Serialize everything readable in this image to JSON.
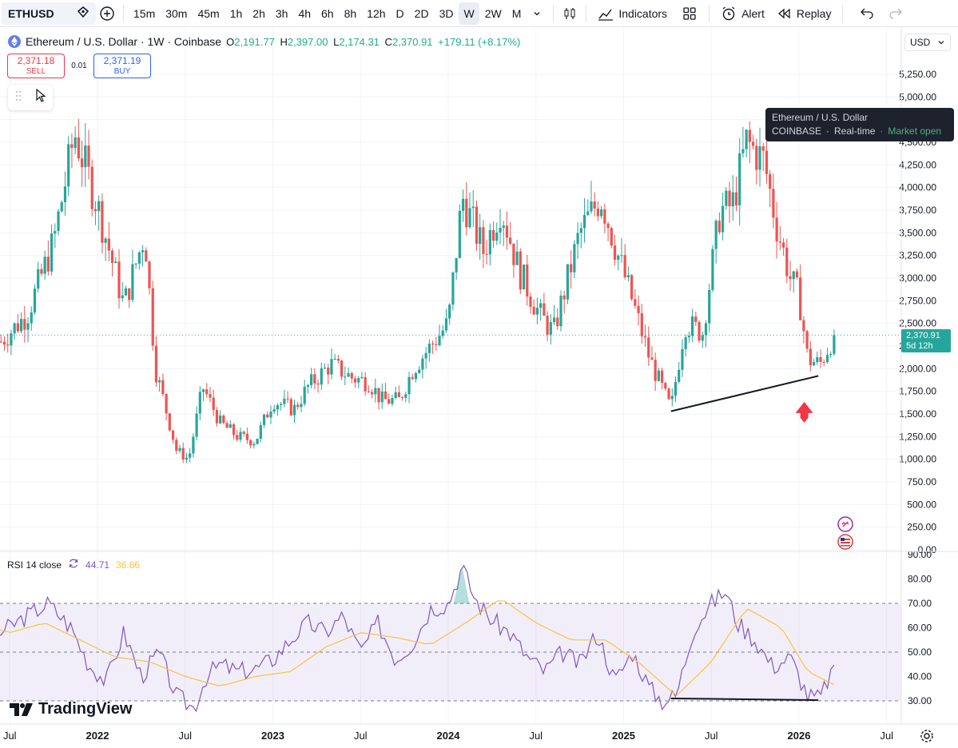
{
  "toolbar": {
    "symbol": "ETHUSD",
    "timeframes": [
      "15m",
      "30m",
      "45m",
      "1h",
      "2h",
      "3h",
      "4h",
      "6h",
      "8h",
      "12h",
      "D",
      "2D",
      "3D",
      "W",
      "2W",
      "M"
    ],
    "active_timeframe": "W",
    "indicators_label": "Indicators",
    "alert_label": "Alert",
    "replay_label": "Replay"
  },
  "legend": {
    "title": "Ethereum / U.S. Dollar · 1W · Coinbase",
    "o_label": "O",
    "o": "2,191.77",
    "h_label": "H",
    "h": "2,397.00",
    "l_label": "L",
    "l": "2,174.31",
    "c_label": "C",
    "c": "2,370.91",
    "change": "+179.11 (+8.17%)"
  },
  "trade": {
    "sell_price": "2,371.18",
    "sell_label": "SELL",
    "spread": "0.01",
    "buy_price": "2,371.19",
    "buy_label": "BUY"
  },
  "currency": "USD",
  "tooltip": {
    "line1": "Ethereum / U.S. Dollar",
    "exchange": "COINBASE",
    "rt": "Real-time",
    "status": "Market open"
  },
  "price_tag": {
    "price": "2,370.91",
    "countdown": "5d 12h"
  },
  "rsi_legend": {
    "label": "RSI 14 close",
    "rsi": "44.71",
    "ma": "36.66"
  },
  "branding": "TradingView",
  "colors": {
    "up": "#26a69a",
    "down": "#ef5350",
    "rsi": "#7e57c2",
    "rsi_ma": "#f7c342"
  },
  "chart_data": [
    {
      "type": "candlestick",
      "title": "Ethereum / U.S. Dollar · 1W · Coinbase",
      "ylim": [
        0,
        5400
      ],
      "y_ticks": [
        0,
        250,
        500,
        750,
        1000,
        1250,
        1500,
        1750,
        2000,
        2250,
        2500,
        2750,
        3000,
        3250,
        3500,
        3750,
        4000,
        4250,
        4500,
        4750,
        5000,
        5250
      ],
      "x_tick_labels": [
        "Jul",
        "2022",
        "Jul",
        "2023",
        "Jul",
        "2024",
        "Jul",
        "2025",
        "Jul",
        "2026",
        "Jul"
      ],
      "x_ticks": [
        2021.5,
        2022.0,
        2022.5,
        2023.0,
        2023.5,
        2024.0,
        2024.5,
        2025.0,
        2025.5,
        2026.0,
        2026.5
      ],
      "last_close": 2370.91,
      "series": [
        {
          "x": [
            2021.45,
            2021.6,
            2021.75,
            2021.87,
            2022.0,
            2022.15,
            2022.27,
            2022.33,
            2022.45,
            2022.52,
            2022.6,
            2022.7,
            2022.8,
            2022.9,
            2023.0,
            2023.12,
            2023.2,
            2023.33,
            2023.45,
            2023.55,
            2023.62,
            2023.72,
            2023.8,
            2023.92,
            2024.0,
            2024.08,
            2024.2,
            2024.3,
            2024.4,
            2024.52,
            2024.6,
            2024.75,
            2024.87,
            2024.96,
            2025.05,
            2025.15,
            2025.27,
            2025.35,
            2025.45,
            2025.55,
            2025.62,
            2025.7,
            2025.8,
            2025.87,
            2025.95,
            2026.0,
            2026.05,
            2026.12,
            2026.2
          ],
          "close": [
            2300,
            2600,
            3400,
            4600,
            3800,
            2700,
            3500,
            2000,
            1100,
            1000,
            1800,
            1400,
            1250,
            1200,
            1650,
            1550,
            1800,
            2050,
            1900,
            1850,
            1650,
            1650,
            2000,
            2300,
            2500,
            3900,
            3300,
            3800,
            3100,
            2600,
            2400,
            3500,
            3900,
            3300,
            2750,
            2100,
            1550,
            2500,
            2400,
            3750,
            3800,
            4500,
            4300,
            3600,
            3000,
            2800,
            2100,
            2050,
            2370.91
          ]
        }
      ],
      "annotations": [
        {
          "type": "trendline",
          "from": [
            2025.27,
            1530
          ],
          "to": [
            2026.11,
            1920
          ]
        },
        {
          "type": "arrow-up",
          "at": [
            2026.03,
            1510
          ]
        }
      ]
    },
    {
      "type": "line",
      "title": "RSI 14 close",
      "ylim": [
        25,
        92
      ],
      "y_ticks": [
        30,
        40,
        50,
        60,
        70,
        80,
        90
      ],
      "bands": [
        30,
        50,
        70
      ],
      "series": [
        {
          "name": "RSI",
          "x": [
            2021.3,
            2021.45,
            2021.6,
            2021.72,
            2021.85,
            2021.95,
            2022.05,
            2022.15,
            2022.25,
            2022.35,
            2022.45,
            2022.55,
            2022.62,
            2022.7,
            2022.8,
            2022.9,
            2023.0,
            2023.1,
            2023.2,
            2023.3,
            2023.4,
            2023.5,
            2023.6,
            2023.7,
            2023.8,
            2023.9,
            2024.0,
            2024.08,
            2024.15,
            2024.25,
            2024.35,
            2024.45,
            2024.55,
            2024.65,
            2024.75,
            2024.85,
            2024.95,
            2025.05,
            2025.15,
            2025.22,
            2025.3,
            2025.4,
            2025.5,
            2025.58,
            2025.65,
            2025.75,
            2025.85,
            2025.95,
            2026.0,
            2026.05,
            2026.12,
            2026.2
          ],
          "values": [
            50,
            58,
            65,
            70,
            60,
            45,
            38,
            58,
            40,
            50,
            32,
            27,
            40,
            45,
            42,
            43,
            47,
            55,
            62,
            58,
            65,
            50,
            62,
            47,
            54,
            68,
            70,
            85,
            72,
            63,
            58,
            48,
            42,
            50,
            45,
            58,
            38,
            50,
            35,
            30,
            32,
            60,
            70,
            75,
            62,
            55,
            44,
            48,
            40,
            32,
            31,
            44.71
          ]
        },
        {
          "name": "RSI-based MA",
          "x": [
            2021.3,
            2021.5,
            2021.7,
            2021.9,
            2022.1,
            2022.3,
            2022.5,
            2022.7,
            2022.9,
            2023.1,
            2023.3,
            2023.5,
            2023.7,
            2023.9,
            2024.1,
            2024.3,
            2024.5,
            2024.7,
            2024.9,
            2025.1,
            2025.3,
            2025.5,
            2025.7,
            2025.9,
            2026.05,
            2026.2
          ],
          "values": [
            62,
            58,
            62,
            55,
            48,
            46,
            40,
            36,
            40,
            42,
            52,
            58,
            56,
            53,
            62,
            72,
            62,
            55,
            55,
            45,
            32,
            46,
            68,
            60,
            42,
            36.66
          ]
        }
      ]
    }
  ]
}
